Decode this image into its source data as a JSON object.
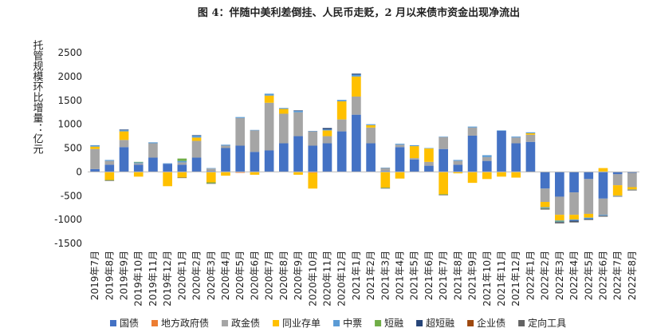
{
  "chart_data": {
    "type": "stacked_bar",
    "title": "图 4：伴随中美利差倒挂、人民币走贬，2 月以来债市资金出现净流出",
    "y_label": "托管规模环比增量：亿元",
    "categories": [
      "2019年7月",
      "2019年8月",
      "2019年9月",
      "2019年10月",
      "2019年11月",
      "2019年12月",
      "2020年1月",
      "2020年2月",
      "2020年3月",
      "2020年4月",
      "2020年5月",
      "2020年6月",
      "2020年7月",
      "2020年8月",
      "2020年9月",
      "2020年10月",
      "2020年11月",
      "2020年12月",
      "2021年1月",
      "2021年2月",
      "2021年3月",
      "2021年4月",
      "2021年5月",
      "2021年6月",
      "2021年7月",
      "2021年8月",
      "2021年9月",
      "2021年10月",
      "2021年11月",
      "2021年12月",
      "2022年1月",
      "2022年2月",
      "2022年3月",
      "2022年4月",
      "2022年5月",
      "2022年6月",
      "2022年7月",
      "2022年8月"
    ],
    "series": [
      {
        "name": "国债",
        "color": "#4472c4",
        "values": [
          60,
          150,
          520,
          150,
          300,
          170,
          150,
          300,
          20,
          500,
          550,
          420,
          450,
          600,
          750,
          550,
          600,
          850,
          1200,
          600,
          20,
          520,
          260,
          130,
          480,
          150,
          760,
          230,
          860,
          600,
          630,
          -350,
          -520,
          -430,
          -150,
          -560,
          -50,
          -20
        ]
      },
      {
        "name": "地方政府债",
        "color": "#ed7d31",
        "values": [
          0,
          0,
          0,
          0,
          0,
          -10,
          0,
          0,
          0,
          0,
          -20,
          0,
          0,
          0,
          0,
          -20,
          0,
          0,
          0,
          0,
          0,
          0,
          0,
          0,
          0,
          0,
          0,
          0,
          0,
          0,
          0,
          0,
          0,
          0,
          0,
          0,
          0,
          0
        ]
      },
      {
        "name": "政金债",
        "color": "#a5a5a5",
        "values": [
          420,
          80,
          150,
          30,
          300,
          0,
          50,
          350,
          50,
          50,
          580,
          450,
          1000,
          620,
          500,
          300,
          150,
          250,
          380,
          330,
          60,
          50,
          30,
          80,
          250,
          80,
          170,
          80,
          0,
          120,
          150,
          -280,
          -380,
          -470,
          -730,
          -340,
          -230,
          -300
        ]
      },
      {
        "name": "同业存单",
        "color": "#ffc000",
        "values": [
          50,
          -170,
          180,
          -100,
          0,
          -290,
          -120,
          70,
          -220,
          -80,
          0,
          -60,
          150,
          100,
          -60,
          -330,
          120,
          380,
          420,
          50,
          -330,
          -140,
          250,
          280,
          -470,
          -30,
          -230,
          -150,
          -100,
          -120,
          30,
          -110,
          -120,
          -100,
          -80,
          80,
          -220,
          -50
        ]
      },
      {
        "name": "中票",
        "color": "#5b9bd5",
        "values": [
          30,
          20,
          30,
          20,
          20,
          10,
          30,
          40,
          10,
          20,
          20,
          10,
          40,
          20,
          30,
          10,
          20,
          30,
          40,
          20,
          10,
          20,
          20,
          10,
          10,
          20,
          20,
          40,
          10,
          20,
          20,
          -20,
          -20,
          -20,
          -30,
          -20,
          -10,
          -10
        ]
      },
      {
        "name": "短融",
        "color": "#70ad47",
        "values": [
          0,
          -10,
          0,
          10,
          0,
          0,
          50,
          0,
          -20,
          0,
          0,
          0,
          0,
          0,
          0,
          0,
          0,
          0,
          0,
          0,
          -10,
          0,
          0,
          0,
          -10,
          0,
          0,
          0,
          0,
          0,
          0,
          -10,
          -10,
          0,
          0,
          0,
          0,
          0
        ]
      },
      {
        "name": "超短融",
        "color": "#264478",
        "values": [
          0,
          0,
          10,
          0,
          0,
          0,
          0,
          10,
          0,
          0,
          0,
          0,
          0,
          0,
          10,
          0,
          30,
          0,
          20,
          0,
          0,
          0,
          0,
          0,
          0,
          0,
          0,
          0,
          0,
          0,
          0,
          0,
          -10,
          -20,
          -10,
          0,
          0,
          0
        ]
      },
      {
        "name": "企业债",
        "color": "#9e480e",
        "values": [
          0,
          0,
          0,
          0,
          0,
          0,
          0,
          0,
          0,
          0,
          0,
          0,
          0,
          0,
          0,
          0,
          0,
          0,
          0,
          0,
          0,
          0,
          0,
          0,
          0,
          0,
          0,
          0,
          0,
          0,
          0,
          0,
          0,
          0,
          0,
          0,
          0,
          0
        ]
      },
      {
        "name": "定向工具",
        "color": "#636363",
        "values": [
          0,
          -10,
          0,
          0,
          0,
          0,
          -10,
          0,
          -10,
          0,
          0,
          0,
          0,
          0,
          0,
          0,
          0,
          0,
          0,
          0,
          -10,
          0,
          0,
          0,
          -10,
          0,
          0,
          0,
          0,
          0,
          -10,
          -20,
          -20,
          -20,
          -10,
          -20,
          -10,
          -10
        ]
      }
    ],
    "ylim": [
      -1500,
      2500
    ],
    "yticks": [
      -1500,
      -1000,
      -500,
      0,
      500,
      1000,
      1500,
      2000,
      2500
    ],
    "grid": false
  }
}
